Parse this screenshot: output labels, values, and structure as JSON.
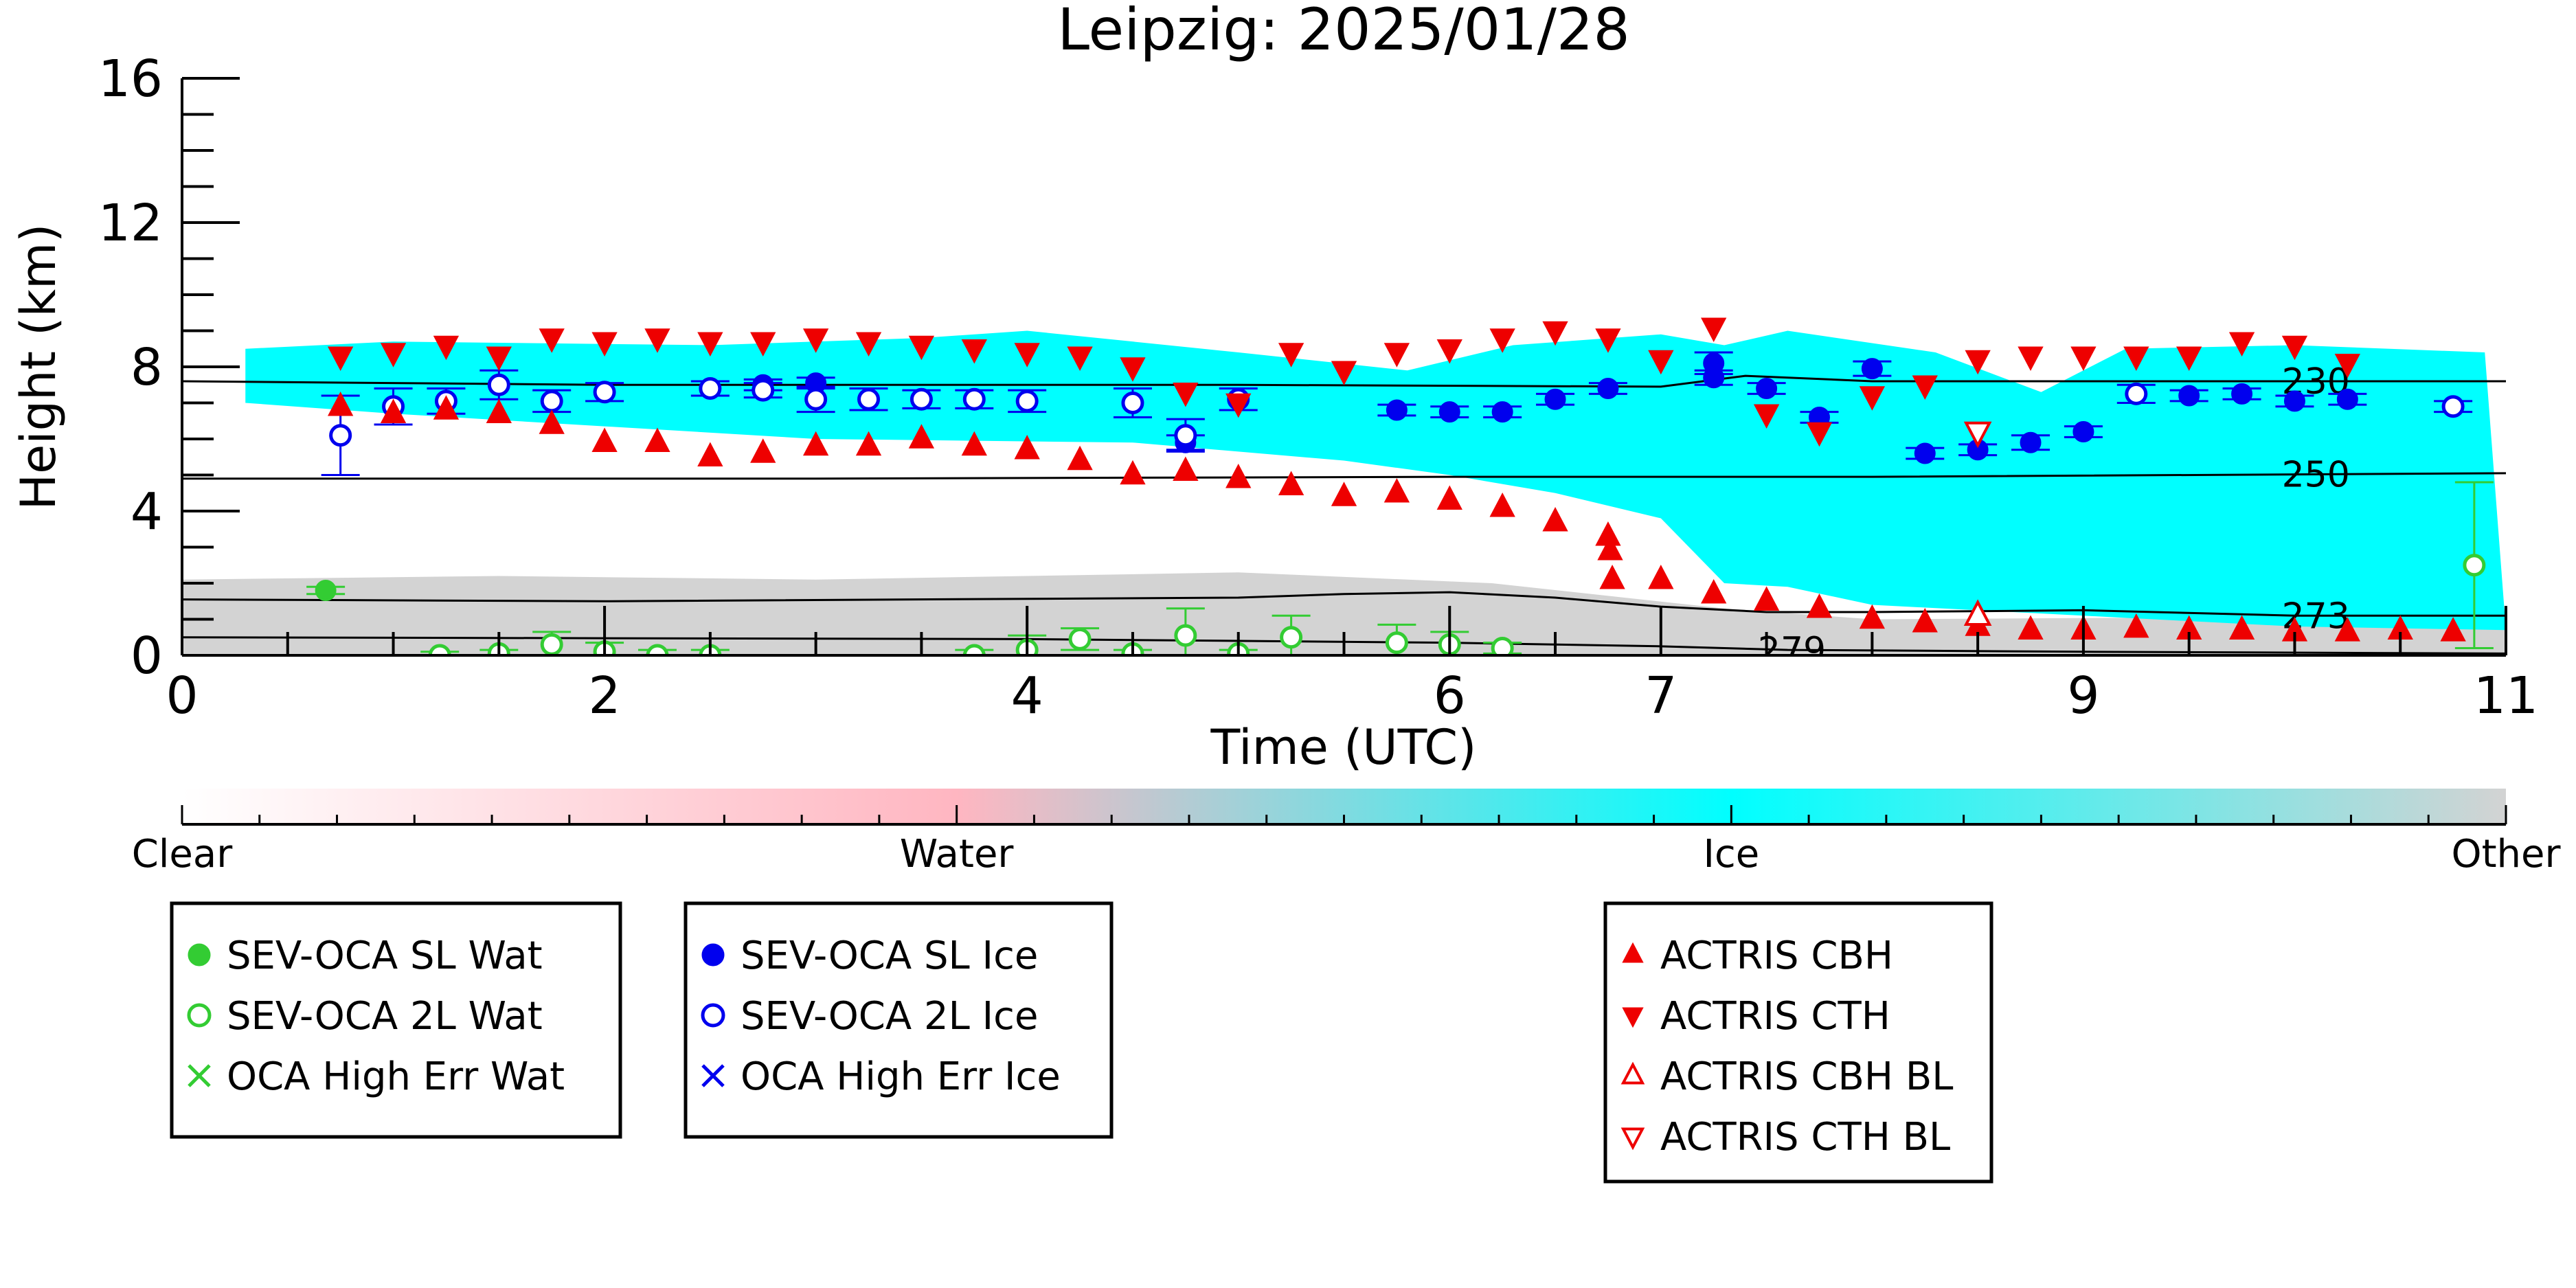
{
  "chart_data": {
    "type": "scatter",
    "title": "Leipzig: 2025/01/28",
    "xlabel": "Time (UTC)",
    "ylabel": "Height (km)",
    "xlim": [
      0,
      11
    ],
    "ylim": [
      0,
      16
    ],
    "x_ticks": [
      0,
      2,
      4,
      6,
      7,
      9,
      11
    ],
    "x_tick_labels": [
      "0",
      "2",
      "4",
      "6",
      "7",
      "9",
      "11"
    ],
    "y_ticks": [
      0,
      4,
      8,
      12,
      16
    ],
    "y_tick_labels": [
      "0",
      "4",
      "8",
      "12",
      "16"
    ],
    "background_layers": [
      {
        "name": "Ice",
        "color": "#00ffff",
        "top": [
          [
            0.3,
            8.5
          ],
          [
            1.0,
            8.7
          ],
          [
            2.5,
            8.6
          ],
          [
            3.5,
            8.8
          ],
          [
            4.0,
            9.0
          ],
          [
            5.0,
            8.4
          ],
          [
            5.8,
            7.9
          ],
          [
            6.3,
            8.6
          ],
          [
            7.0,
            8.9
          ],
          [
            7.3,
            8.6
          ],
          [
            7.6,
            9.0
          ],
          [
            8.3,
            8.4
          ],
          [
            8.8,
            7.3
          ],
          [
            9.2,
            8.5
          ],
          [
            10.0,
            8.6
          ],
          [
            10.9,
            8.4
          ]
        ],
        "bottom": [
          [
            0.3,
            7.0
          ],
          [
            1.0,
            6.7
          ],
          [
            3.0,
            6.0
          ],
          [
            4.5,
            5.9
          ],
          [
            5.5,
            5.4
          ],
          [
            6.0,
            5.0
          ],
          [
            6.5,
            4.5
          ],
          [
            7.0,
            3.8
          ],
          [
            7.3,
            2.0
          ],
          [
            7.6,
            1.9
          ],
          [
            8.0,
            1.4
          ],
          [
            9.0,
            1.1
          ],
          [
            10.0,
            0.8
          ],
          [
            11.0,
            0.7
          ]
        ]
      },
      {
        "name": "Other",
        "color": "#d3d3d3",
        "top": [
          [
            0.0,
            2.1
          ],
          [
            1.5,
            2.2
          ],
          [
            3.0,
            2.1
          ],
          [
            5.0,
            2.3
          ],
          [
            6.2,
            2.0
          ],
          [
            7.3,
            1.3
          ],
          [
            8.0,
            1.0
          ],
          [
            11.0,
            1.1
          ]
        ],
        "bottom": [
          [
            0.0,
            0.0
          ],
          [
            11.0,
            0.0
          ]
        ]
      }
    ],
    "contours": [
      {
        "label": "230",
        "label_x": 10.1,
        "points": [
          [
            0.0,
            7.6
          ],
          [
            2.0,
            7.5
          ],
          [
            5.0,
            7.5
          ],
          [
            7.0,
            7.45
          ],
          [
            7.4,
            7.75
          ],
          [
            8.0,
            7.6
          ],
          [
            11.0,
            7.6
          ]
        ]
      },
      {
        "label": "250",
        "label_x": 10.1,
        "points": [
          [
            0.0,
            4.9
          ],
          [
            3.0,
            4.9
          ],
          [
            6.0,
            4.95
          ],
          [
            8.0,
            4.95
          ],
          [
            11.0,
            5.05
          ]
        ]
      },
      {
        "label": "273",
        "label_x": 10.1,
        "points": [
          [
            0.0,
            1.55
          ],
          [
            2.0,
            1.5
          ],
          [
            5.0,
            1.6
          ],
          [
            5.5,
            1.7
          ],
          [
            6.0,
            1.75
          ],
          [
            6.5,
            1.6
          ],
          [
            7.0,
            1.35
          ],
          [
            7.5,
            1.2
          ],
          [
            8.0,
            1.2
          ],
          [
            9.0,
            1.25
          ],
          [
            10.0,
            1.1
          ],
          [
            11.0,
            1.1
          ]
        ]
      },
      {
        "label": "279",
        "label_x": 7.62,
        "points": [
          [
            0.0,
            0.5
          ],
          [
            4.0,
            0.45
          ],
          [
            6.0,
            0.35
          ],
          [
            7.0,
            0.25
          ],
          [
            7.6,
            0.15
          ],
          [
            9.0,
            0.1
          ],
          [
            11.0,
            0.05
          ]
        ]
      }
    ],
    "series": [
      {
        "name": "SEV-OCA SL Wat",
        "marker": "filled-circle",
        "color": "#33cc33",
        "points": [
          [
            0.68,
            1.8
          ]
        ],
        "err": [
          0.1
        ]
      },
      {
        "name": "SEV-OCA 2L Wat",
        "marker": "open-circle",
        "color": "#33cc33",
        "points": [
          [
            1.22,
            0.0
          ],
          [
            1.5,
            0.05
          ],
          [
            1.75,
            0.3
          ],
          [
            2.0,
            0.1
          ],
          [
            2.25,
            0.0
          ],
          [
            2.5,
            0.0
          ],
          [
            3.75,
            0.0
          ],
          [
            4.0,
            0.15
          ],
          [
            4.25,
            0.45
          ],
          [
            4.5,
            0.05
          ],
          [
            4.75,
            0.55
          ],
          [
            5.0,
            0.05
          ],
          [
            5.25,
            0.5
          ],
          [
            5.75,
            0.35
          ],
          [
            6.0,
            0.3
          ],
          [
            6.25,
            0.2
          ],
          [
            10.85,
            2.5
          ]
        ],
        "err": [
          0.1,
          0.1,
          0.35,
          0.25,
          0.15,
          0.15,
          0.15,
          0.4,
          0.3,
          0.1,
          0.75,
          0.1,
          0.6,
          0.5,
          0.35,
          0.15,
          2.3
        ]
      },
      {
        "name": "OCA High Err Wat",
        "marker": "x",
        "color": "#33cc33",
        "points": [],
        "err": []
      },
      {
        "name": "SEV-OCA SL Ice",
        "marker": "filled-circle",
        "color": "#0000ee",
        "points": [
          [
            2.75,
            7.5
          ],
          [
            3.0,
            7.55
          ],
          [
            4.75,
            5.9
          ],
          [
            5.75,
            6.8
          ],
          [
            6.0,
            6.75
          ],
          [
            6.25,
            6.75
          ],
          [
            6.5,
            7.1
          ],
          [
            6.75,
            7.4
          ],
          [
            7.25,
            7.7
          ],
          [
            7.25,
            8.1
          ],
          [
            7.5,
            7.4
          ],
          [
            7.75,
            6.6
          ],
          [
            8.0,
            7.95
          ],
          [
            8.25,
            5.6
          ],
          [
            8.5,
            5.7
          ],
          [
            8.75,
            5.9
          ],
          [
            9.0,
            6.2
          ],
          [
            9.5,
            7.2
          ],
          [
            9.75,
            7.25
          ],
          [
            10.0,
            7.05
          ],
          [
            10.25,
            7.1
          ]
        ],
        "err": [
          0.15,
          0.15,
          0.2,
          0.15,
          0.15,
          0.15,
          0.15,
          0.15,
          0.2,
          0.3,
          0.15,
          0.15,
          0.2,
          0.15,
          0.15,
          0.2,
          0.15,
          0.15,
          0.15,
          0.15,
          0.15
        ]
      },
      {
        "name": "SEV-OCA 2L Ice",
        "marker": "open-circle",
        "color": "#0000ee",
        "points": [
          [
            0.75,
            6.1
          ],
          [
            1.0,
            6.9
          ],
          [
            1.25,
            7.05
          ],
          [
            1.5,
            7.5
          ],
          [
            1.75,
            7.05
          ],
          [
            2.0,
            7.3
          ],
          [
            2.5,
            7.4
          ],
          [
            2.75,
            7.35
          ],
          [
            3.0,
            7.1
          ],
          [
            3.25,
            7.1
          ],
          [
            3.5,
            7.1
          ],
          [
            3.75,
            7.1
          ],
          [
            4.0,
            7.05
          ],
          [
            4.5,
            7.0
          ],
          [
            4.75,
            6.1
          ],
          [
            5.0,
            7.1
          ],
          [
            9.25,
            7.25
          ],
          [
            10.75,
            6.9
          ]
        ],
        "err": [
          1.1,
          0.5,
          0.35,
          0.4,
          0.3,
          0.25,
          0.2,
          0.2,
          0.35,
          0.3,
          0.25,
          0.25,
          0.3,
          0.4,
          0.45,
          0.3,
          0.25,
          0.15
        ]
      },
      {
        "name": "OCA High Err Ice",
        "marker": "x",
        "color": "#0000ee",
        "points": [],
        "err": []
      },
      {
        "name": "ACTRIS CBH",
        "marker": "triangle-up",
        "color": "#ee0000",
        "points": [
          [
            0.75,
            6.9
          ],
          [
            1.0,
            6.7
          ],
          [
            1.25,
            6.8
          ],
          [
            1.5,
            6.7
          ],
          [
            1.75,
            6.4
          ],
          [
            2.0,
            5.9
          ],
          [
            2.25,
            5.9
          ],
          [
            2.5,
            5.5
          ],
          [
            2.75,
            5.6
          ],
          [
            3.0,
            5.8
          ],
          [
            3.25,
            5.8
          ],
          [
            3.5,
            6.0
          ],
          [
            3.75,
            5.8
          ],
          [
            4.0,
            5.7
          ],
          [
            4.25,
            5.4
          ],
          [
            4.5,
            5.0
          ],
          [
            4.75,
            5.1
          ],
          [
            5.0,
            4.9
          ],
          [
            5.25,
            4.7
          ],
          [
            5.5,
            4.4
          ],
          [
            5.75,
            4.5
          ],
          [
            6.0,
            4.3
          ],
          [
            6.25,
            4.1
          ],
          [
            6.5,
            3.7
          ],
          [
            6.75,
            3.3
          ],
          [
            6.76,
            2.9
          ],
          [
            6.77,
            2.1
          ],
          [
            7.0,
            2.1
          ],
          [
            7.25,
            1.7
          ],
          [
            7.5,
            1.5
          ],
          [
            7.75,
            1.3
          ],
          [
            8.0,
            1.0
          ],
          [
            8.25,
            0.9
          ],
          [
            8.5,
            0.8
          ],
          [
            8.75,
            0.7
          ],
          [
            9.0,
            0.7
          ],
          [
            9.25,
            0.75
          ],
          [
            9.5,
            0.7
          ],
          [
            9.75,
            0.7
          ],
          [
            10.0,
            0.65
          ],
          [
            10.25,
            0.65
          ],
          [
            10.5,
            0.7
          ],
          [
            10.75,
            0.65
          ]
        ]
      },
      {
        "name": "ACTRIS CTH",
        "marker": "triangle-down",
        "color": "#ee0000",
        "points": [
          [
            0.75,
            8.3
          ],
          [
            1.0,
            8.4
          ],
          [
            1.25,
            8.6
          ],
          [
            1.5,
            8.3
          ],
          [
            1.75,
            8.8
          ],
          [
            2.0,
            8.7
          ],
          [
            2.25,
            8.8
          ],
          [
            2.5,
            8.7
          ],
          [
            2.75,
            8.7
          ],
          [
            3.0,
            8.8
          ],
          [
            3.25,
            8.7
          ],
          [
            3.5,
            8.6
          ],
          [
            3.75,
            8.5
          ],
          [
            4.0,
            8.4
          ],
          [
            4.25,
            8.3
          ],
          [
            4.5,
            8.0
          ],
          [
            4.75,
            7.3
          ],
          [
            5.0,
            7.0
          ],
          [
            5.25,
            8.4
          ],
          [
            5.5,
            7.9
          ],
          [
            5.75,
            8.4
          ],
          [
            6.0,
            8.5
          ],
          [
            6.25,
            8.8
          ],
          [
            6.5,
            9.0
          ],
          [
            6.75,
            8.8
          ],
          [
            7.0,
            8.2
          ],
          [
            7.25,
            9.1
          ],
          [
            7.5,
            6.7
          ],
          [
            7.75,
            6.2
          ],
          [
            8.0,
            7.2
          ],
          [
            8.25,
            7.5
          ],
          [
            8.5,
            8.2
          ],
          [
            8.75,
            8.3
          ],
          [
            9.0,
            8.3
          ],
          [
            9.25,
            8.3
          ],
          [
            9.5,
            8.3
          ],
          [
            9.75,
            8.7
          ],
          [
            10.0,
            8.6
          ],
          [
            10.25,
            8.1
          ]
        ]
      },
      {
        "name": "ACTRIS CBH BL",
        "marker": "open-triangle-up",
        "color": "#ee0000",
        "points": [
          [
            8.5,
            1.1
          ]
        ]
      },
      {
        "name": "ACTRIS CTH BL",
        "marker": "open-triangle-down",
        "color": "#ee0000",
        "points": [
          [
            8.5,
            6.2
          ]
        ]
      }
    ],
    "grid": false
  },
  "colorbar": {
    "labels": [
      "Clear",
      "Water",
      "Ice",
      "Other"
    ],
    "colors": [
      "#ffffff",
      "#ffb6c1",
      "#00ffff",
      "#d3d3d3"
    ]
  },
  "legend_boxes": [
    {
      "entries": [
        {
          "label": "SEV-OCA SL Wat",
          "marker": "filled-circle",
          "color": "#33cc33"
        },
        {
          "label": "SEV-OCA 2L Wat",
          "marker": "open-circle",
          "color": "#33cc33"
        },
        {
          "label": "OCA High Err Wat",
          "marker": "x",
          "color": "#33cc33"
        }
      ]
    },
    {
      "entries": [
        {
          "label": "SEV-OCA SL Ice",
          "marker": "filled-circle",
          "color": "#0000ee"
        },
        {
          "label": "SEV-OCA 2L Ice",
          "marker": "open-circle",
          "color": "#0000ee"
        },
        {
          "label": "OCA High Err Ice",
          "marker": "x",
          "color": "#0000ee"
        }
      ]
    },
    {
      "entries": [
        {
          "label": "ACTRIS CBH",
          "marker": "triangle-up",
          "color": "#ee0000"
        },
        {
          "label": "ACTRIS CTH",
          "marker": "triangle-down",
          "color": "#ee0000"
        },
        {
          "label": "ACTRIS CBH BL",
          "marker": "open-triangle-up",
          "color": "#ee0000"
        },
        {
          "label": "ACTRIS CTH BL",
          "marker": "open-triangle-down",
          "color": "#ee0000"
        }
      ]
    }
  ]
}
